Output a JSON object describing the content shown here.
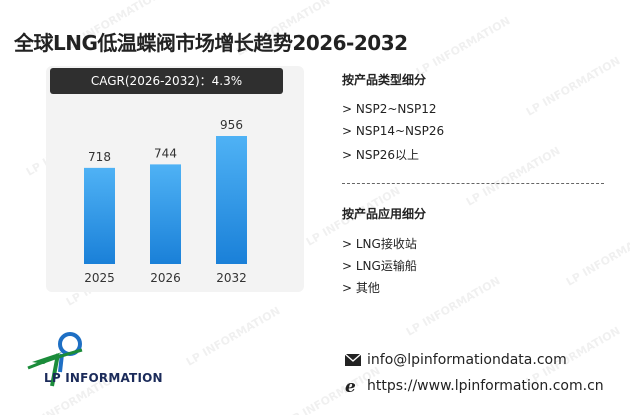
{
  "title": "全球LNG低温蝶阀市场增长趋势2026-2032",
  "cagr_label": "CAGR(2026-2032)：4.3%",
  "chart_data": {
    "type": "bar",
    "categories": [
      "2025",
      "2026",
      "2032"
    ],
    "values": [
      718,
      744,
      956
    ],
    "title": "",
    "xlabel": "",
    "ylabel": "",
    "ylim": [
      0,
      1000
    ],
    "grid": false,
    "legend": "none",
    "bar_color_top": "#4fb2f5",
    "bar_color_bottom": "#1a80d8"
  },
  "segments": {
    "product_type": {
      "title": "按产品类型细分",
      "items": [
        "> NSP2~NSP12",
        "> NSP14~NSP26",
        "> NSP26以上"
      ]
    },
    "application": {
      "title": "按产品应用细分",
      "items": [
        "> LNG接收站",
        "> LNG运输船",
        "> 其他"
      ]
    }
  },
  "logo": {
    "text": "LP INFORMATION",
    "colors": [
      "#1b8c3a",
      "#1e6fc4"
    ]
  },
  "contact": {
    "email": "info@lpinformationdata.com",
    "website": "https://www.lpinformation.com.cn"
  },
  "watermark_text": "LP INFORMATION"
}
